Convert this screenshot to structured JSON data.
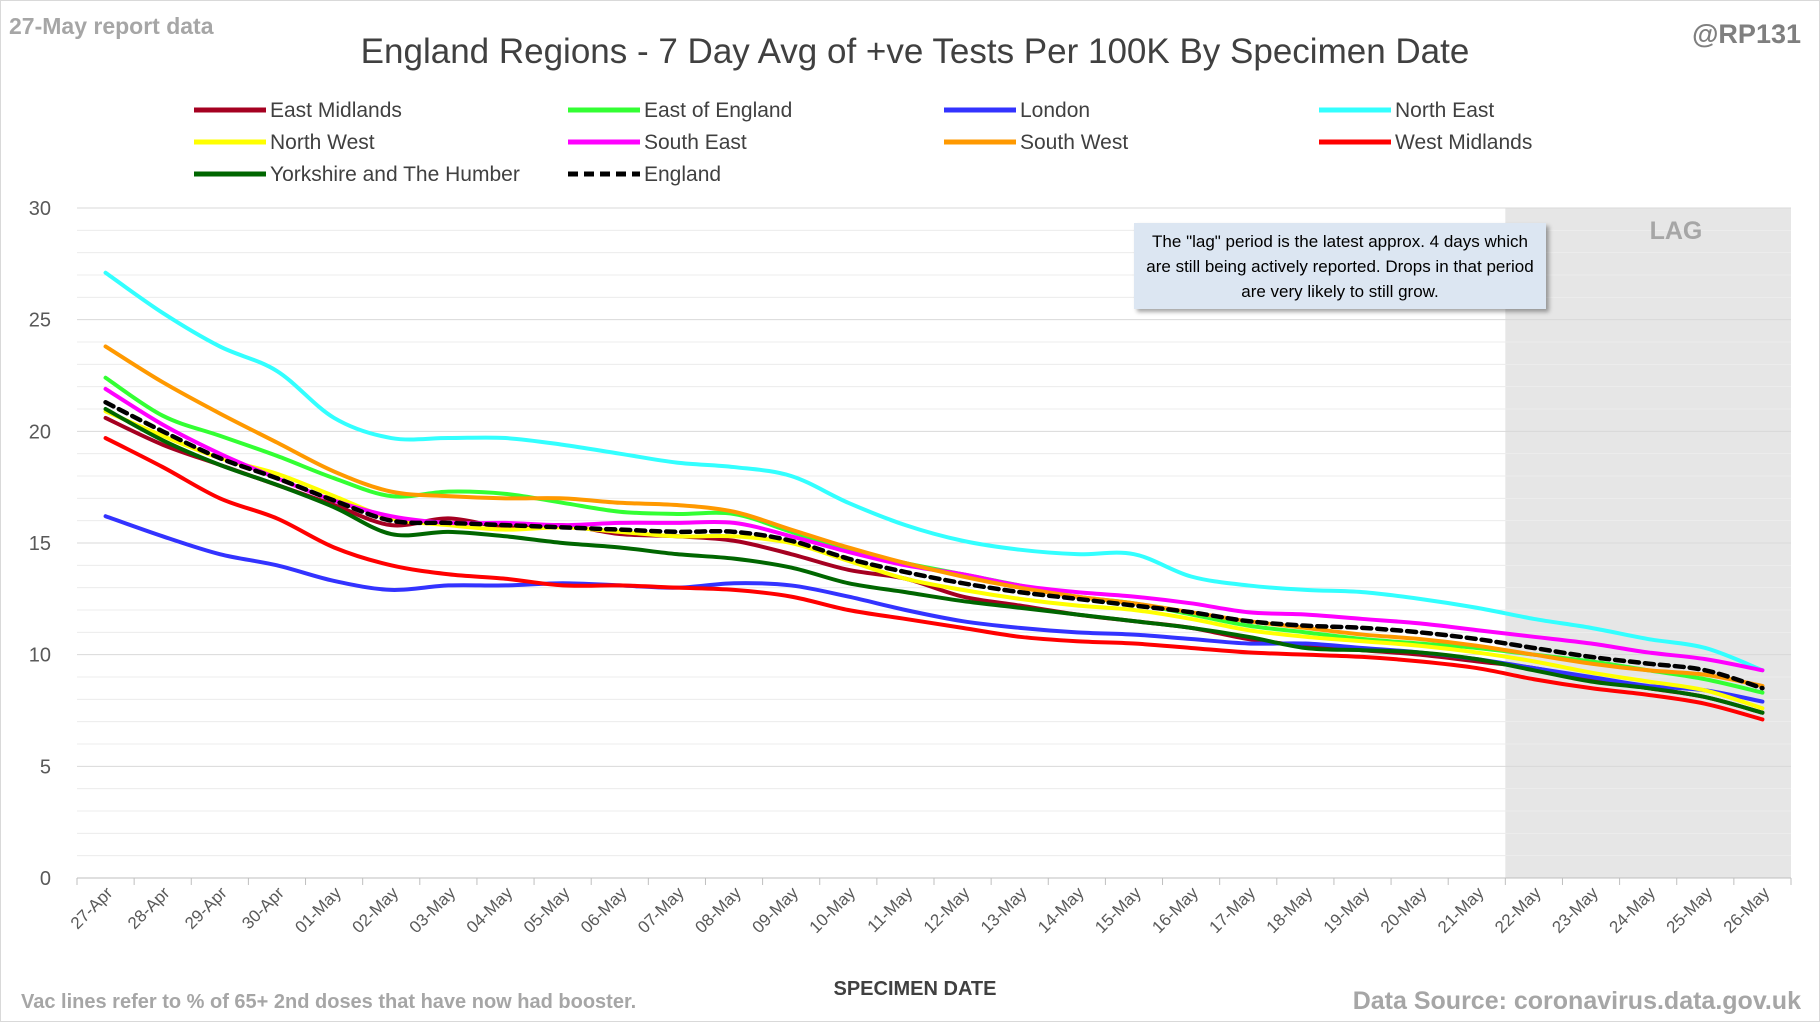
{
  "report_date_label": "27-May report data",
  "handle": "@RP131",
  "footnote": "Vac lines refer to % of 65+ 2nd doses that have now had booster.",
  "source": "Data Source: coronavirus.data.gov.uk",
  "lag_note": "The \"lag\" period is the latest approx. 4 days which are still being actively reported. Drops in that period are very likely to still grow.",
  "chart_data": {
    "type": "line",
    "title": "England Regions - 7 Day Avg of +ve Tests Per 100K By Specimen Date",
    "xlabel": "SPECIMEN DATE",
    "ylabel": "",
    "ylim": [
      0,
      30
    ],
    "yticks": [
      0,
      5,
      10,
      15,
      20,
      25,
      30
    ],
    "grid": "horizontal minor and major gridlines",
    "legend_position": "top",
    "shaded_region": {
      "label": "LAG",
      "from": "22-May",
      "to": "26-May",
      "color": "#e6e6e6"
    },
    "categories": [
      "27-Apr",
      "28-Apr",
      "29-Apr",
      "30-Apr",
      "01-May",
      "02-May",
      "03-May",
      "04-May",
      "05-May",
      "06-May",
      "07-May",
      "08-May",
      "09-May",
      "10-May",
      "11-May",
      "12-May",
      "13-May",
      "14-May",
      "15-May",
      "16-May",
      "17-May",
      "18-May",
      "19-May",
      "20-May",
      "21-May",
      "22-May",
      "23-May",
      "24-May",
      "25-May",
      "26-May"
    ],
    "series": [
      {
        "name": "East Midlands",
        "color": "#a50021",
        "dash": false,
        "values": [
          20.6,
          19.4,
          18.5,
          17.6,
          16.7,
          15.8,
          16.1,
          15.7,
          15.8,
          15.4,
          15.3,
          15.1,
          14.5,
          13.8,
          13.4,
          12.6,
          12.2,
          11.8,
          11.5,
          11.2,
          10.7,
          10.4,
          10.2,
          10.0,
          9.7,
          9.4,
          8.9,
          8.5,
          8.1,
          7.4
        ]
      },
      {
        "name": "East of England",
        "color": "#33ff33",
        "dash": false,
        "values": [
          22.4,
          20.7,
          19.8,
          18.9,
          17.9,
          17.1,
          17.3,
          17.2,
          16.8,
          16.4,
          16.3,
          16.3,
          15.5,
          14.7,
          14.1,
          13.6,
          13.1,
          12.6,
          12.3,
          11.8,
          11.3,
          11.0,
          10.7,
          10.5,
          10.3,
          10.0,
          9.7,
          9.3,
          8.9,
          8.3
        ]
      },
      {
        "name": "London",
        "color": "#3333ff",
        "dash": false,
        "values": [
          16.2,
          15.3,
          14.5,
          14.0,
          13.3,
          12.9,
          13.1,
          13.1,
          13.2,
          13.1,
          13.0,
          13.2,
          13.1,
          12.6,
          12.0,
          11.5,
          11.2,
          11.0,
          10.9,
          10.7,
          10.5,
          10.5,
          10.3,
          10.1,
          9.8,
          9.4,
          9.0,
          8.6,
          8.4,
          7.9
        ]
      },
      {
        "name": "North East",
        "color": "#33ffff",
        "dash": false,
        "values": [
          27.1,
          25.3,
          23.8,
          22.7,
          20.6,
          19.7,
          19.7,
          19.7,
          19.4,
          19.0,
          18.6,
          18.4,
          18.0,
          16.8,
          15.8,
          15.1,
          14.7,
          14.5,
          14.5,
          13.5,
          13.1,
          12.9,
          12.8,
          12.5,
          12.1,
          11.6,
          11.2,
          10.7,
          10.3,
          9.3
        ]
      },
      {
        "name": "North West",
        "color": "#ffff00",
        "dash": false,
        "values": [
          20.9,
          19.8,
          18.8,
          18.1,
          17.1,
          16.1,
          15.8,
          15.6,
          15.7,
          15.5,
          15.3,
          15.3,
          15.0,
          14.2,
          13.4,
          12.9,
          12.5,
          12.2,
          12.0,
          11.6,
          11.1,
          10.8,
          10.6,
          10.4,
          10.1,
          9.7,
          9.2,
          8.8,
          8.4,
          7.6
        ]
      },
      {
        "name": "South East",
        "color": "#ff00ff",
        "dash": false,
        "values": [
          21.9,
          20.3,
          19.0,
          17.9,
          16.9,
          16.2,
          15.9,
          15.9,
          15.8,
          15.9,
          15.9,
          15.9,
          15.3,
          14.6,
          14.0,
          13.6,
          13.1,
          12.8,
          12.6,
          12.3,
          11.9,
          11.8,
          11.6,
          11.4,
          11.1,
          10.8,
          10.5,
          10.1,
          9.8,
          9.3
        ]
      },
      {
        "name": "South West",
        "color": "#ff9900",
        "dash": false,
        "values": [
          23.8,
          22.2,
          20.8,
          19.5,
          18.2,
          17.3,
          17.1,
          17.0,
          17.0,
          16.8,
          16.7,
          16.4,
          15.6,
          14.8,
          14.1,
          13.5,
          13.0,
          12.6,
          12.3,
          11.9,
          11.5,
          11.2,
          10.9,
          10.7,
          10.4,
          10.0,
          9.6,
          9.3,
          9.1,
          8.6
        ]
      },
      {
        "name": "West Midlands",
        "color": "#ff0000",
        "dash": false,
        "values": [
          19.7,
          18.4,
          17.0,
          16.1,
          14.8,
          14.0,
          13.6,
          13.4,
          13.1,
          13.1,
          13.0,
          12.9,
          12.6,
          12.0,
          11.6,
          11.2,
          10.8,
          10.6,
          10.5,
          10.3,
          10.1,
          10.0,
          9.9,
          9.7,
          9.4,
          8.9,
          8.5,
          8.2,
          7.8,
          7.1
        ]
      },
      {
        "name": "Yorkshire and The Humber",
        "color": "#006600",
        "dash": false,
        "values": [
          21.0,
          19.6,
          18.5,
          17.6,
          16.6,
          15.4,
          15.5,
          15.3,
          15.0,
          14.8,
          14.5,
          14.3,
          13.9,
          13.2,
          12.8,
          12.4,
          12.1,
          11.8,
          11.5,
          11.2,
          10.8,
          10.3,
          10.2,
          10.1,
          9.8,
          9.3,
          8.8,
          8.5,
          8.1,
          7.4
        ]
      },
      {
        "name": "England",
        "color": "#000000",
        "dash": true,
        "values": [
          21.3,
          20.0,
          18.8,
          17.9,
          16.9,
          16.0,
          15.9,
          15.8,
          15.7,
          15.6,
          15.5,
          15.5,
          15.1,
          14.3,
          13.7,
          13.2,
          12.8,
          12.5,
          12.2,
          11.9,
          11.5,
          11.3,
          11.2,
          11.0,
          10.7,
          10.3,
          9.9,
          9.6,
          9.3,
          8.5
        ]
      }
    ]
  }
}
